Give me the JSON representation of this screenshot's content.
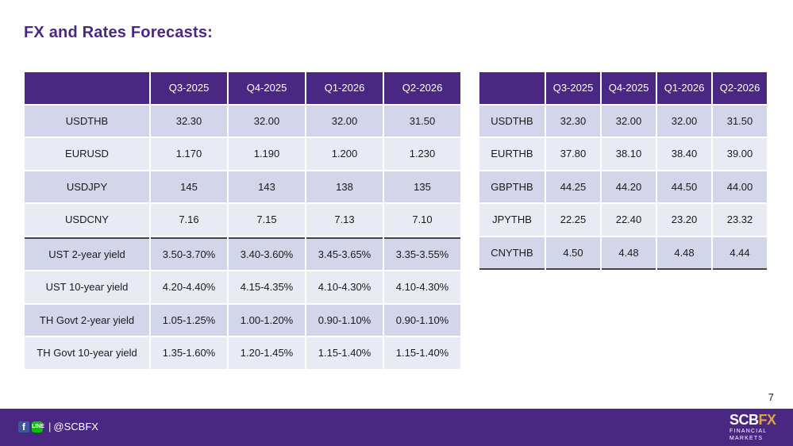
{
  "title": "FX and Rates Forecasts:",
  "left_table": {
    "headers": [
      "",
      "Q3-2025",
      "Q4-2025",
      "Q1-2026",
      "Q2-2026"
    ],
    "rows": [
      {
        "label": "USDTHB",
        "values": [
          "32.30",
          "32.00",
          "32.00",
          "31.50"
        ]
      },
      {
        "label": "EURUSD",
        "values": [
          "1.170",
          "1.190",
          "1.200",
          "1.230"
        ]
      },
      {
        "label": "USDJPY",
        "values": [
          "145",
          "143",
          "138",
          "135"
        ]
      },
      {
        "label": "USDCNY",
        "values": [
          "7.16",
          "7.15",
          "7.13",
          "7.10"
        ]
      },
      {
        "label": "UST 2-year yield",
        "values": [
          "3.50-3.70%",
          "3.40-3.60%",
          "3.45-3.65%",
          "3.35-3.55%"
        ]
      },
      {
        "label": "UST 10-year yield",
        "values": [
          "4.20-4.40%",
          "4.15-4.35%",
          "4.10-4.30%",
          "4.10-4.30%"
        ]
      },
      {
        "label": "TH Govt 2-year yield",
        "values": [
          "1.05-1.25%",
          "1.00-1.20%",
          "0.90-1.10%",
          "0.90-1.10%"
        ]
      },
      {
        "label": "TH Govt 10-year yield",
        "values": [
          "1.35-1.60%",
          "1.20-1.45%",
          "1.15-1.40%",
          "1.15-1.40%"
        ]
      }
    ]
  },
  "right_table": {
    "headers": [
      "",
      "Q3-2025",
      "Q4-2025",
      "Q1-2026",
      "Q2-2026"
    ],
    "rows": [
      {
        "label": "USDTHB",
        "values": [
          "32.30",
          "32.00",
          "32.00",
          "31.50"
        ]
      },
      {
        "label": "EURTHB",
        "values": [
          "37.80",
          "38.10",
          "38.40",
          "39.00"
        ]
      },
      {
        "label": "GBPTHB",
        "values": [
          "44.25",
          "44.20",
          "44.50",
          "44.00"
        ]
      },
      {
        "label": "JPYTHB",
        "values": [
          "22.25",
          "22.40",
          "23.20",
          "23.32"
        ]
      },
      {
        "label": "CNYTHB",
        "values": [
          "4.50",
          "4.48",
          "4.48",
          "4.44"
        ]
      }
    ]
  },
  "page_number": "7",
  "footer": {
    "handle": "@SCBFX",
    "fb_icon": "f",
    "line_icon": "LINE",
    "separator": "|",
    "logo_scb": "SCB",
    "logo_fx": "FX",
    "logo_line1": "FINANCIAL",
    "logo_line2": "MARKETS"
  },
  "colors": {
    "brand_purple": "#4b2784",
    "row_dark": "#d3d6ea",
    "row_light": "#e9ebf4",
    "logo_gold": "#d8a93a"
  }
}
